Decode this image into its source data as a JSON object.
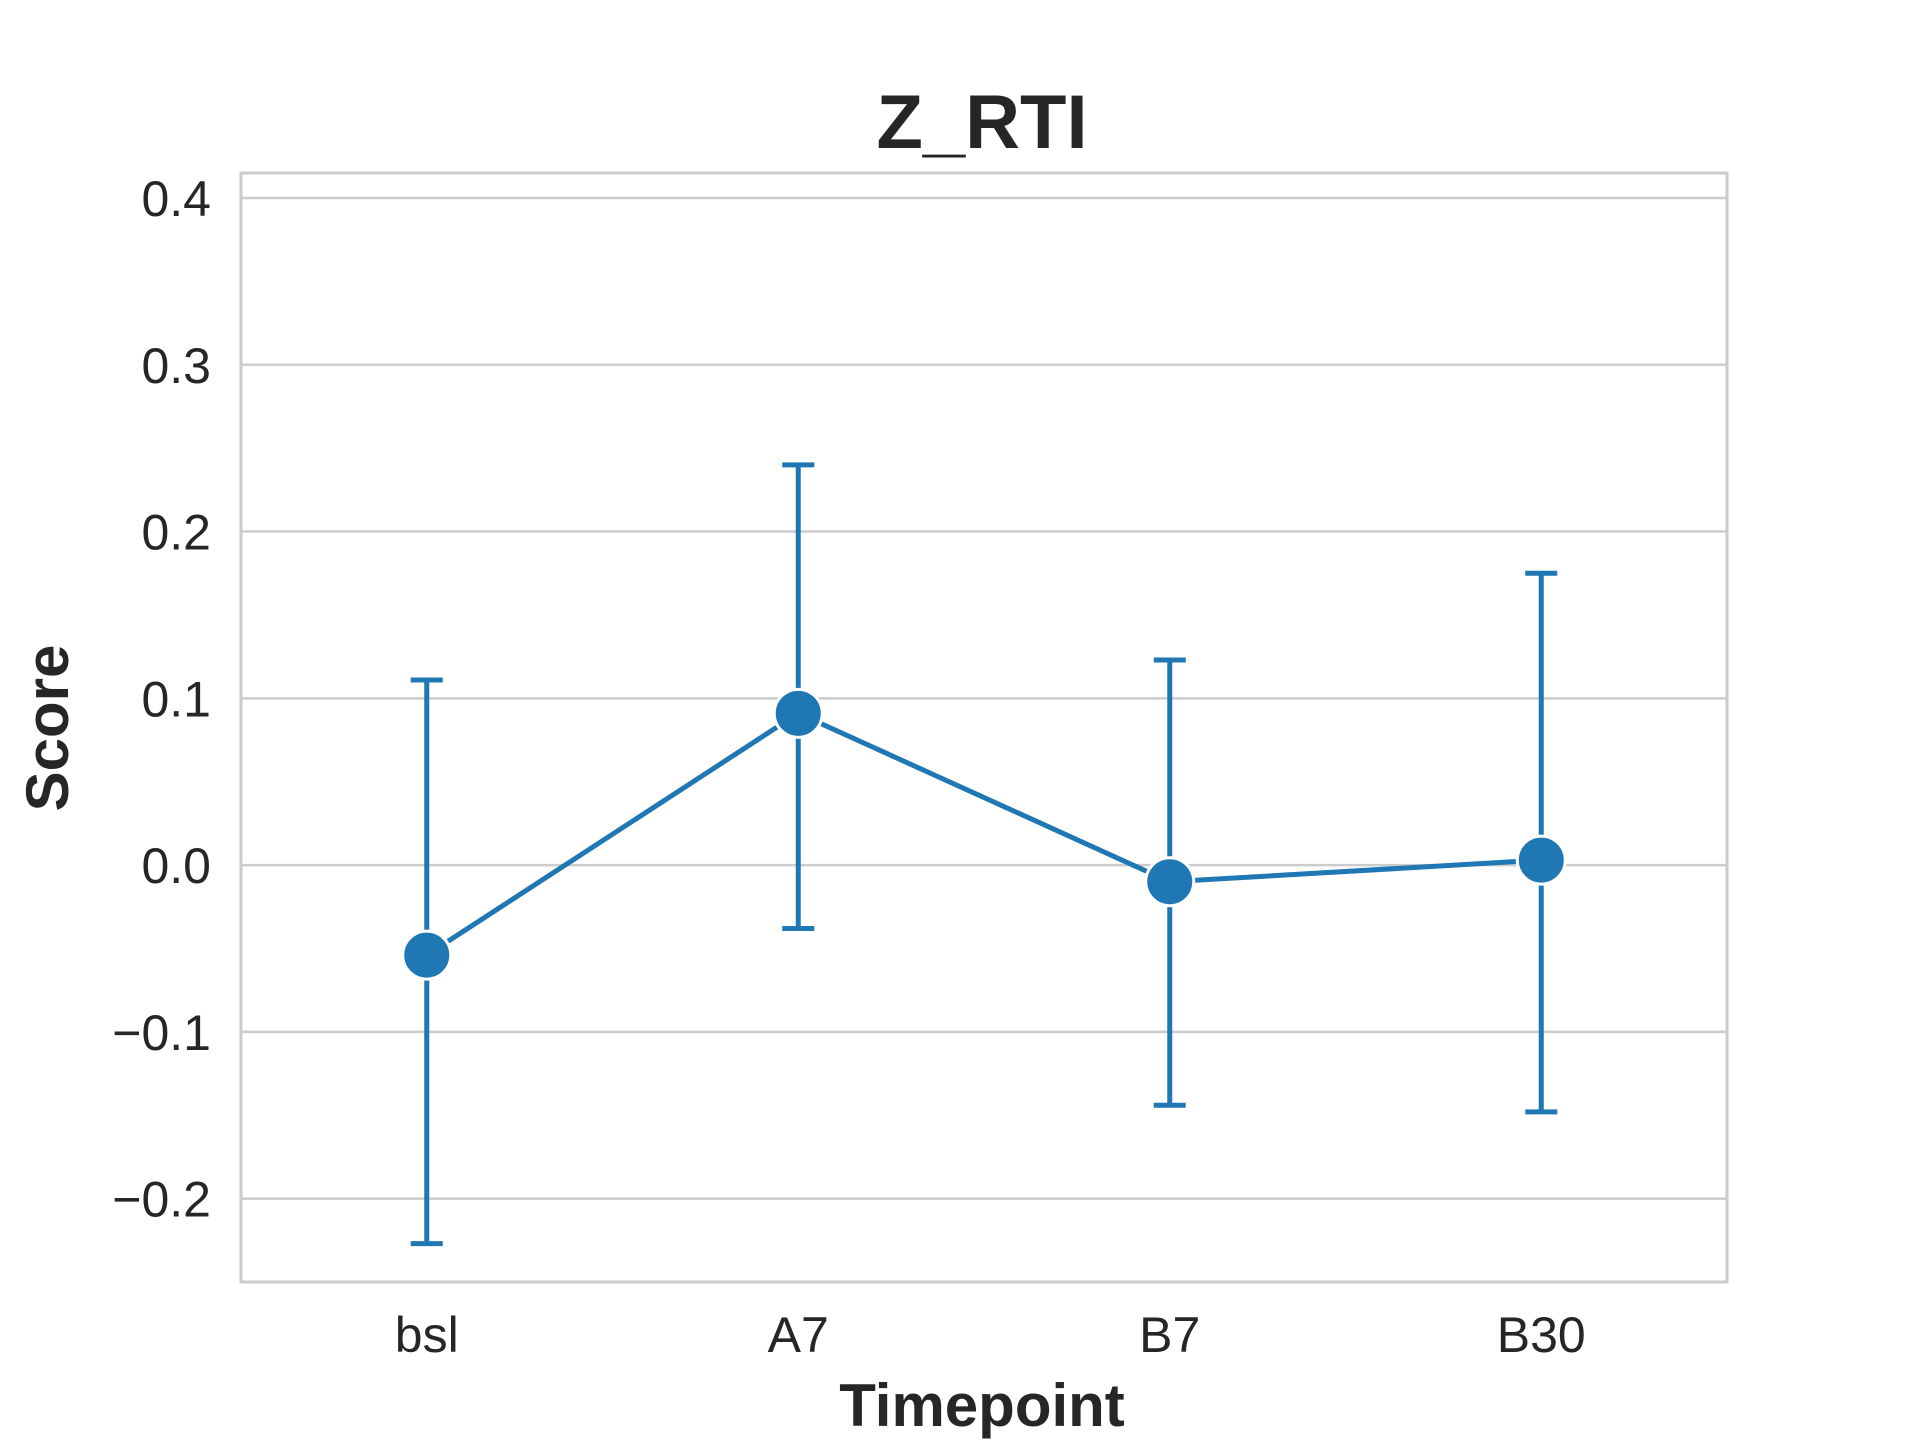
{
  "chart_data": {
    "type": "line",
    "title": "Z_RTI",
    "xlabel": "Timepoint",
    "ylabel": "Score",
    "categories": [
      "bsl",
      "A7",
      "B7",
      "B30"
    ],
    "values": [
      -0.054,
      0.091,
      -0.01,
      0.003
    ],
    "error_low": [
      -0.227,
      -0.038,
      -0.144,
      -0.148
    ],
    "error_high": [
      0.111,
      0.24,
      0.123,
      0.175
    ],
    "ylim": [
      -0.25,
      0.415
    ],
    "yticks": [
      -0.2,
      -0.1,
      0.0,
      0.1,
      0.2,
      0.3,
      0.4
    ],
    "ytick_labels": [
      "−0.2",
      "−0.1",
      "0.0",
      "0.1",
      "0.2",
      "0.3",
      "0.4"
    ],
    "grid": "horizontal",
    "color": "#1f77b4"
  }
}
